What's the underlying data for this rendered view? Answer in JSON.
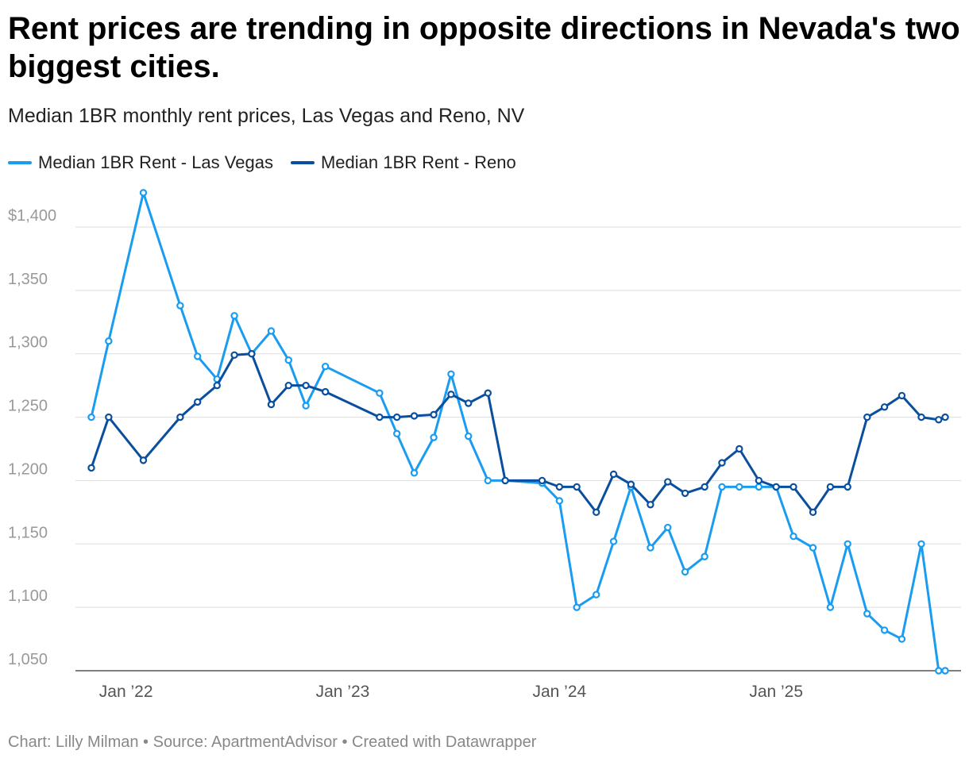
{
  "title": "Rent prices are trending in opposite directions in Nevada's two biggest cities.",
  "subtitle": "Median 1BR monthly rent prices, Las Vegas and Reno, NV",
  "footer": "Chart: Lilly Milman • Source: ApartmentAdvisor • Created with Datawrapper",
  "colors": {
    "las_vegas": "#1a9cf0",
    "reno": "#0a4f9e",
    "grid": "#dddddd",
    "tick": "#999999"
  },
  "chart_data": {
    "type": "line",
    "title": "Rent prices are trending in opposite directions in Nevada's two biggest cities.",
    "subtitle": "Median 1BR monthly rent prices, Las Vegas and Reno, NV",
    "xlabel": "",
    "ylabel": "",
    "ylim": [
      1050,
      1400
    ],
    "y_ticks": [
      {
        "value": 1400,
        "label": "$1,400"
      },
      {
        "value": 1350,
        "label": "1,350"
      },
      {
        "value": 1300,
        "label": "1,300"
      },
      {
        "value": 1250,
        "label": "1,250"
      },
      {
        "value": 1200,
        "label": "1,200"
      },
      {
        "value": 1150,
        "label": "1,150"
      },
      {
        "value": 1100,
        "label": "1,100"
      },
      {
        "value": 1050,
        "label": "1,050"
      }
    ],
    "x_ticks": [
      {
        "value": 2022.0,
        "label": "Jan ’22"
      },
      {
        "value": 2023.0,
        "label": "Jan ’23"
      },
      {
        "value": 2024.0,
        "label": "Jan ’24"
      },
      {
        "value": 2025.0,
        "label": "Jan ’25"
      }
    ],
    "legend_position": "top-left",
    "series": [
      {
        "name": "Median 1BR Rent - Las Vegas",
        "color": "#1a9cf0",
        "points": [
          [
            2021.84,
            1250
          ],
          [
            2021.92,
            1310
          ],
          [
            2022.08,
            1427
          ],
          [
            2022.25,
            1338
          ],
          [
            2022.33,
            1298
          ],
          [
            2022.42,
            1280
          ],
          [
            2022.5,
            1330
          ],
          [
            2022.58,
            1300
          ],
          [
            2022.67,
            1318
          ],
          [
            2022.75,
            1295
          ],
          [
            2022.83,
            1259
          ],
          [
            2022.92,
            1290
          ],
          [
            2023.17,
            1269
          ],
          [
            2023.25,
            1237
          ],
          [
            2023.33,
            1206
          ],
          [
            2023.42,
            1234
          ],
          [
            2023.5,
            1284
          ],
          [
            2023.58,
            1235
          ],
          [
            2023.67,
            1200
          ],
          [
            2023.75,
            1200
          ],
          [
            2023.92,
            1198
          ],
          [
            2024.0,
            1184
          ],
          [
            2024.08,
            1100
          ],
          [
            2024.17,
            1110
          ],
          [
            2024.25,
            1152
          ],
          [
            2024.33,
            1195
          ],
          [
            2024.42,
            1147
          ],
          [
            2024.5,
            1163
          ],
          [
            2024.58,
            1128
          ],
          [
            2024.67,
            1140
          ],
          [
            2024.75,
            1195
          ],
          [
            2024.83,
            1195
          ],
          [
            2024.92,
            1195
          ],
          [
            2025.0,
            1195
          ],
          [
            2025.08,
            1156
          ],
          [
            2025.17,
            1147
          ],
          [
            2025.25,
            1100
          ],
          [
            2025.33,
            1150
          ],
          [
            2025.42,
            1095
          ],
          [
            2025.5,
            1082
          ],
          [
            2025.58,
            1075
          ],
          [
            2025.67,
            1150
          ],
          [
            2025.75,
            1050
          ],
          [
            2025.78,
            1050
          ]
        ]
      },
      {
        "name": "Median 1BR Rent - Reno",
        "color": "#0a4f9e",
        "points": [
          [
            2021.84,
            1210
          ],
          [
            2021.92,
            1250
          ],
          [
            2022.08,
            1216
          ],
          [
            2022.25,
            1250
          ],
          [
            2022.33,
            1262
          ],
          [
            2022.42,
            1275
          ],
          [
            2022.5,
            1299
          ],
          [
            2022.58,
            1300
          ],
          [
            2022.67,
            1260
          ],
          [
            2022.75,
            1275
          ],
          [
            2022.83,
            1275
          ],
          [
            2022.92,
            1270
          ],
          [
            2023.17,
            1250
          ],
          [
            2023.25,
            1250
          ],
          [
            2023.33,
            1251
          ],
          [
            2023.42,
            1252
          ],
          [
            2023.5,
            1268
          ],
          [
            2023.58,
            1261
          ],
          [
            2023.67,
            1269
          ],
          [
            2023.75,
            1200
          ],
          [
            2023.92,
            1200
          ],
          [
            2024.0,
            1195
          ],
          [
            2024.08,
            1195
          ],
          [
            2024.17,
            1175
          ],
          [
            2024.25,
            1205
          ],
          [
            2024.33,
            1197
          ],
          [
            2024.42,
            1181
          ],
          [
            2024.5,
            1199
          ],
          [
            2024.58,
            1190
          ],
          [
            2024.67,
            1195
          ],
          [
            2024.75,
            1214
          ],
          [
            2024.83,
            1225
          ],
          [
            2024.92,
            1200
          ],
          [
            2025.0,
            1195
          ],
          [
            2025.08,
            1195
          ],
          [
            2025.17,
            1175
          ],
          [
            2025.25,
            1195
          ],
          [
            2025.33,
            1195
          ],
          [
            2025.42,
            1250
          ],
          [
            2025.5,
            1258
          ],
          [
            2025.58,
            1267
          ],
          [
            2025.67,
            1250
          ],
          [
            2025.75,
            1248
          ],
          [
            2025.78,
            1250
          ]
        ]
      }
    ]
  }
}
